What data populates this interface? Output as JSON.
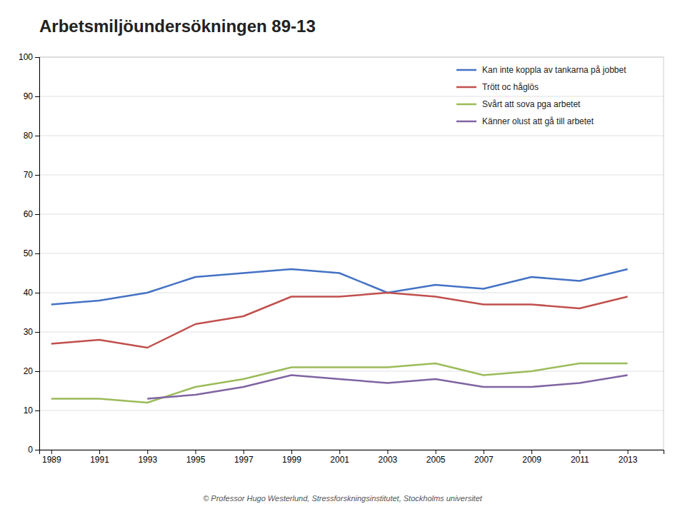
{
  "chart_data": {
    "type": "line",
    "title": "Arbetsmiljöundersökningen 89-13",
    "annotations": [
      "© Professor Hugo Westerlund, Stressforskningsinstitutet, Stockholms universitet"
    ],
    "x": [
      1989,
      1991,
      1993,
      1995,
      1997,
      1999,
      2001,
      2003,
      2005,
      2007,
      2009,
      2011,
      2013
    ],
    "series": [
      {
        "name": "Kan inte koppla av tankarna på jobbet",
        "color": "#4472C4",
        "values": [
          37,
          38,
          40,
          44,
          45,
          46,
          45,
          40,
          42,
          41,
          44,
          43,
          46
        ]
      },
      {
        "name": "Trött oc håglös",
        "color": "#C0504D",
        "values": [
          27,
          28,
          26,
          32,
          34,
          39,
          39,
          40,
          39,
          37,
          37,
          36,
          39
        ]
      },
      {
        "name": "Svårt att sova pga arbetet",
        "color": "#9BBB59",
        "values": [
          13,
          13,
          12,
          16,
          18,
          21,
          21,
          21,
          22,
          19,
          20,
          22,
          22
        ]
      },
      {
        "name": "Känner olust att gå till arbetet",
        "color": "#8064A2",
        "values": [
          null,
          null,
          13,
          14,
          16,
          19,
          18,
          17,
          18,
          16,
          16,
          17,
          19
        ]
      }
    ],
    "xlim": [
      1988.5,
      2014.5
    ],
    "xticks": [
      1989,
      1991,
      1993,
      1995,
      1997,
      1999,
      2001,
      2003,
      2005,
      2007,
      2009,
      2011,
      2013
    ],
    "ylim": [
      0,
      100
    ],
    "yticks": [
      0,
      10,
      20,
      30,
      40,
      50,
      60,
      70,
      80,
      90,
      100
    ],
    "grid": true,
    "legend": "top-right"
  }
}
